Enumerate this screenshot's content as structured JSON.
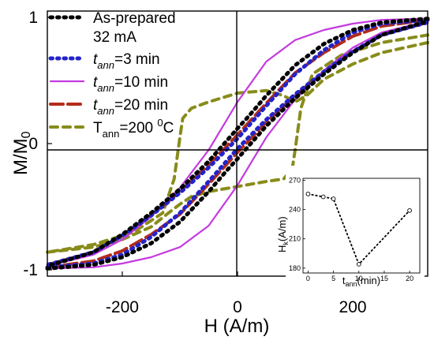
{
  "chart_data": [
    {
      "type": "line",
      "title": "",
      "xlabel": "H (A/m)",
      "ylabel_main": "M/M",
      "ylabel_sub": "0",
      "xlim": [
        -330,
        330
      ],
      "ylim": [
        -1.05,
        1.05
      ],
      "xticks": [
        -200,
        0,
        200
      ],
      "xtick_labels": [
        "-200",
        "0",
        "200"
      ],
      "yticks": [
        -1,
        0,
        1
      ],
      "ytick_labels": [
        "-1",
        "0",
        "1"
      ],
      "legend_position": "top-left",
      "legend": [
        {
          "id": "asprep",
          "lines": [
            "As-prepared",
            "32 mA"
          ],
          "color": "#000000",
          "dash": "dot-bold"
        },
        {
          "id": "t3",
          "pre": "t",
          "sub": "ann",
          "post": "=3 min",
          "color": "#2323c8",
          "dash": "dot-bold"
        },
        {
          "id": "t10",
          "pre": "t",
          "sub": "ann",
          "post": "=10 min",
          "color": "#c43ae0",
          "dash": "solid"
        },
        {
          "id": "t20",
          "pre": "t",
          "sub": "ann",
          "post": "=20 min",
          "color": "#b32d1a",
          "dash": "dash"
        },
        {
          "id": "T200",
          "pre": "T",
          "sub": "ann",
          "post": "=200 ",
          "sup": "0",
          "post2": "C",
          "color": "#888c1a",
          "dash": "dash-short"
        }
      ],
      "series": [
        {
          "id": "asprep",
          "name": "As-prepared 32 mA",
          "color": "#000000",
          "upper": {
            "x": [
              330,
              250,
              200,
              150,
              100,
              50,
              20,
              0,
              -50,
              -100,
              -150,
              -200,
              -250,
              -330
            ],
            "y": [
              0.99,
              0.96,
              0.9,
              0.79,
              0.62,
              0.38,
              0.22,
              0.12,
              -0.14,
              -0.36,
              -0.55,
              -0.72,
              -0.86,
              -0.97
            ]
          },
          "lower": {
            "x": [
              -330,
              -250,
              -200,
              -150,
              -100,
              -50,
              -20,
              0,
              50,
              100,
              150,
              200,
              250,
              330
            ],
            "y": [
              -0.99,
              -0.96,
              -0.9,
              -0.79,
              -0.62,
              -0.38,
              -0.22,
              -0.12,
              0.14,
              0.36,
              0.55,
              0.72,
              0.86,
              0.97
            ]
          }
        },
        {
          "id": "t3",
          "name": "t_ann=3 min",
          "color": "#2323c8",
          "upper": {
            "x": [
              330,
              250,
              200,
              150,
              100,
              50,
              0,
              -50,
              -100,
              -150,
              -200,
              -250,
              -330
            ],
            "y": [
              0.98,
              0.95,
              0.88,
              0.74,
              0.55,
              0.3,
              0.04,
              -0.19,
              -0.39,
              -0.57,
              -0.73,
              -0.86,
              -0.96
            ]
          },
          "lower": {
            "x": [
              -330,
              -250,
              -200,
              -150,
              -100,
              -50,
              0,
              50,
              100,
              150,
              200,
              250,
              330
            ],
            "y": [
              -0.98,
              -0.95,
              -0.88,
              -0.74,
              -0.55,
              -0.3,
              -0.04,
              0.19,
              0.39,
              0.57,
              0.73,
              0.86,
              0.96
            ]
          }
        },
        {
          "id": "t10",
          "name": "t_ann=10 min",
          "color": "#c43ae0",
          "upper": {
            "x": [
              330,
              250,
              200,
              150,
              100,
              50,
              0,
              -50,
              -100,
              -150,
              -200,
              -250,
              -330
            ],
            "y": [
              0.99,
              0.98,
              0.95,
              0.9,
              0.82,
              0.65,
              0.33,
              -0.05,
              -0.35,
              -0.58,
              -0.76,
              -0.88,
              -0.97
            ]
          },
          "lower": {
            "x": [
              -330,
              -250,
              -200,
              -150,
              -100,
              -50,
              0,
              50,
              100,
              150,
              200,
              250,
              330
            ],
            "y": [
              -0.99,
              -0.98,
              -0.95,
              -0.9,
              -0.82,
              -0.65,
              -0.33,
              0.05,
              0.35,
              0.58,
              0.76,
              0.88,
              0.97
            ]
          }
        },
        {
          "id": "t20",
          "name": "t_ann=20 min",
          "color": "#b32d1a",
          "upper": {
            "x": [
              330,
              250,
              200,
              150,
              100,
              50,
              0,
              -50,
              -100,
              -150,
              -200,
              -250,
              -330
            ],
            "y": [
              0.98,
              0.93,
              0.85,
              0.72,
              0.56,
              0.32,
              0.07,
              -0.17,
              -0.38,
              -0.57,
              -0.73,
              -0.86,
              -0.96
            ]
          },
          "lower": {
            "x": [
              -330,
              -250,
              -200,
              -150,
              -100,
              -50,
              0,
              50,
              100,
              150,
              200,
              250,
              330
            ],
            "y": [
              -0.98,
              -0.93,
              -0.85,
              -0.72,
              -0.56,
              -0.32,
              -0.07,
              0.17,
              0.38,
              0.57,
              0.73,
              0.86,
              0.96
            ]
          }
        },
        {
          "id": "T200",
          "name": "T_ann=200 0C",
          "color": "#888c1a",
          "upper": {
            "x": [
              330,
              250,
              200,
              150,
              120,
              100,
              80,
              50,
              0,
              -50,
              -80,
              -95,
              -100,
              -110,
              -130,
              -180,
              -250,
              -330
            ],
            "y": [
              0.8,
              0.72,
              0.63,
              0.51,
              0.38,
              0.33,
              0.38,
              0.42,
              0.4,
              0.33,
              0.28,
              0.2,
              0.05,
              -0.28,
              -0.55,
              -0.7,
              -0.8,
              -0.86
            ]
          },
          "lower": {
            "x": [
              -330,
              -250,
              -200,
              -150,
              -120,
              -100,
              -80,
              -50,
              0,
              50,
              80,
              95,
              100,
              110,
              130,
              180,
              250,
              330
            ],
            "y": [
              -0.86,
              -0.82,
              -0.76,
              -0.66,
              -0.55,
              -0.48,
              -0.42,
              -0.38,
              -0.34,
              -0.3,
              -0.28,
              -0.2,
              -0.05,
              0.28,
              0.55,
              0.7,
              0.8,
              0.86
            ]
          }
        }
      ]
    },
    {
      "type": "scatter",
      "title": "",
      "xlabel_pre": "t",
      "xlabel_sub": "ann",
      "xlabel_post": "(min)",
      "ylabel_pre": "H",
      "ylabel_sub": "k",
      "ylabel_post": "(A/m)",
      "xlim": [
        -1,
        22
      ],
      "ylim": [
        175,
        272
      ],
      "xticks": [
        0,
        5,
        10,
        15,
        20
      ],
      "xtick_labels": [
        "0",
        "5",
        "10",
        "15",
        "20"
      ],
      "yticks": [
        180,
        210,
        240,
        270
      ],
      "ytick_labels": [
        "180",
        "210",
        "240",
        "270"
      ],
      "x": [
        0,
        3,
        5,
        10,
        20
      ],
      "y": [
        256,
        253,
        251,
        184,
        239
      ],
      "style": "dotted line with open circle markers"
    }
  ]
}
